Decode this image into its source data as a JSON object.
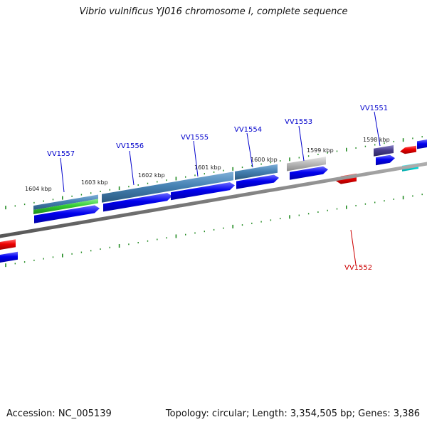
{
  "title": "Vibrio vulnificus YJ016 chromosome I, complete sequence",
  "footer": {
    "accession": "Accession: NC_005139",
    "topology": "Topology: circular; Length: 3,354,505 bp; Genes: 3,386"
  },
  "colors": {
    "backbone": "#808080",
    "tick": "#228B22",
    "forward_cds": "#0000ee",
    "reverse_cds": "#ee0000",
    "steelblue_feature": "#4682b4",
    "green_feature": "#33cc33",
    "gray_feature": "#bbbbbb",
    "purple_feature": "#483d8b",
    "cyan_feature": "#00e5e5",
    "forward_label": "#0000cc",
    "reverse_label": "#cc0000"
  },
  "tick_labels": [
    "1604 kbp",
    "1603 kbp",
    "1602 kbp",
    "1601 kbp",
    "1600 kbp",
    "1599 kbp",
    "1598 kbp"
  ],
  "genes": [
    {
      "id": "VV1557",
      "strand": "forward"
    },
    {
      "id": "VV1556",
      "strand": "forward"
    },
    {
      "id": "VV1555",
      "strand": "forward"
    },
    {
      "id": "VV1554",
      "strand": "forward"
    },
    {
      "id": "VV1553",
      "strand": "forward"
    },
    {
      "id": "VV1551",
      "strand": "forward"
    },
    {
      "id": "VV1552",
      "strand": "reverse"
    }
  ]
}
